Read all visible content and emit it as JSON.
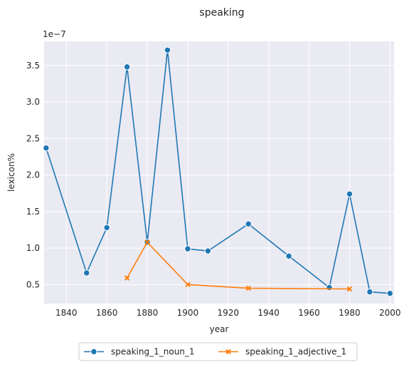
{
  "chart_data": {
    "type": "line",
    "title": "speaking",
    "xlabel": "year",
    "ylabel": "lexicon%",
    "y_offset_text": "1e−7",
    "xlim": [
      1829,
      2002
    ],
    "ylim": [
      2.4e-08,
      3.83e-07
    ],
    "x_ticks": [
      1840,
      1860,
      1880,
      1900,
      1920,
      1940,
      1960,
      1980,
      2000
    ],
    "y_ticks": [
      5e-08,
      1e-07,
      1.5e-07,
      2e-07,
      2.5e-07,
      3e-07,
      3.5e-07
    ],
    "y_tick_labels": [
      "0.5",
      "1.0",
      "1.5",
      "2.0",
      "2.5",
      "3.0",
      "3.5"
    ],
    "grid": true,
    "legend_position": "bottom-center",
    "series": [
      {
        "name": "speaking_1_noun_1",
        "color": "#1f77b4",
        "marker": "circle",
        "x": [
          1830,
          1850,
          1860,
          1870,
          1880,
          1890,
          1900,
          1910,
          1930,
          1950,
          1970,
          1980,
          1990,
          2000
        ],
        "y": [
          2.37e-07,
          6.6e-08,
          1.28e-07,
          3.48e-07,
          1.08e-07,
          3.71e-07,
          9.9e-08,
          9.6e-08,
          1.33e-07,
          8.9e-08,
          4.6e-08,
          1.74e-07,
          4e-08,
          3.8e-08
        ]
      },
      {
        "name": "speaking_1_adjective_1",
        "color": "#ff7f0e",
        "marker": "x",
        "x": [
          1870,
          1880,
          1900,
          1930,
          1980
        ],
        "y": [
          5.9e-08,
          1.08e-07,
          5e-08,
          4.5e-08,
          4.4e-08
        ]
      }
    ]
  }
}
